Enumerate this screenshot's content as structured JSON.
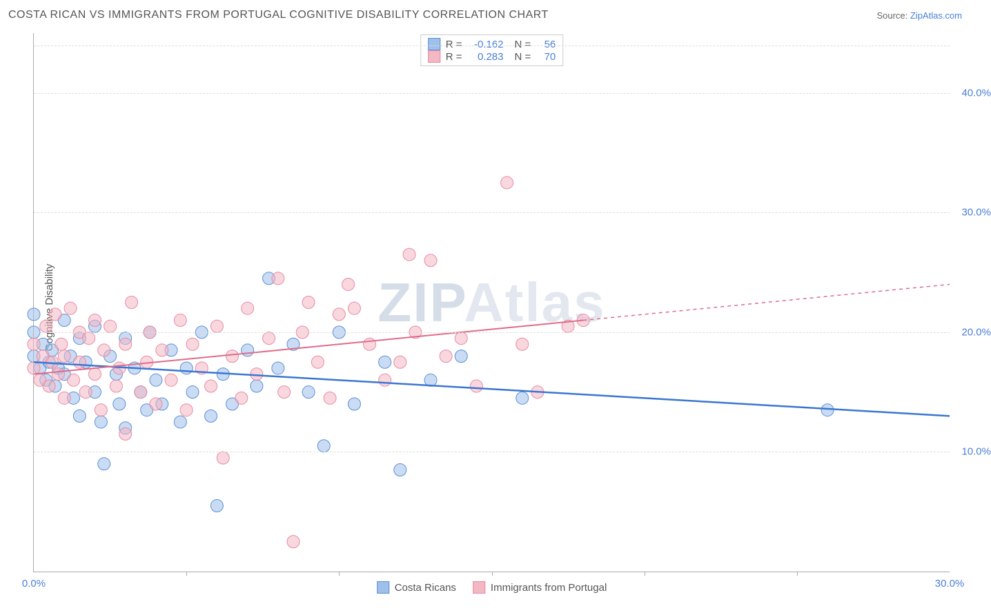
{
  "title": "COSTA RICAN VS IMMIGRANTS FROM PORTUGAL COGNITIVE DISABILITY CORRELATION CHART",
  "source_prefix": "Source: ",
  "source_link": "ZipAtlas.com",
  "y_axis_label": "Cognitive Disability",
  "watermark": {
    "part1": "ZIP",
    "part2": "Atlas"
  },
  "chart": {
    "type": "scatter",
    "xlim": [
      0,
      30
    ],
    "ylim": [
      0,
      45
    ],
    "x_ticks": [
      0,
      30
    ],
    "x_tick_labels": [
      "0.0%",
      "30.0%"
    ],
    "x_minor_ticks": [
      5,
      10,
      15,
      20,
      25
    ],
    "y_ticks": [
      10,
      20,
      30,
      40
    ],
    "y_tick_labels": [
      "10.0%",
      "20.0%",
      "30.0%",
      "40.0%"
    ],
    "grid_color": "#dddddd",
    "background_color": "#ffffff",
    "axis_color": "#aaaaaa",
    "tick_label_color": "#4a7fd6",
    "title_color": "#555555",
    "title_fontsize": 16,
    "label_fontsize": 15,
    "marker_radius": 9,
    "marker_opacity": 0.55,
    "series": [
      {
        "name": "Costa Ricans",
        "fill_color": "#9fc0ea",
        "stroke_color": "#5b8fd6",
        "line_color": "#3a76d0",
        "line_width": 2.5,
        "R": "-0.162",
        "N": "56",
        "trend": {
          "x1": 0,
          "y1": 17.5,
          "x2": 30,
          "y2": 13.0,
          "solid_until_x": 30
        },
        "points": [
          [
            0.0,
            18.0
          ],
          [
            0.0,
            20.0
          ],
          [
            0.0,
            21.5
          ],
          [
            0.2,
            17.0
          ],
          [
            0.3,
            19.0
          ],
          [
            0.4,
            16.0
          ],
          [
            0.5,
            17.5
          ],
          [
            0.6,
            18.5
          ],
          [
            0.7,
            15.5
          ],
          [
            0.8,
            17.0
          ],
          [
            1.0,
            21.0
          ],
          [
            1.0,
            16.5
          ],
          [
            1.2,
            18.0
          ],
          [
            1.3,
            14.5
          ],
          [
            1.5,
            19.5
          ],
          [
            1.5,
            13.0
          ],
          [
            1.7,
            17.5
          ],
          [
            2.0,
            15.0
          ],
          [
            2.0,
            20.5
          ],
          [
            2.2,
            12.5
          ],
          [
            2.3,
            9.0
          ],
          [
            2.5,
            18.0
          ],
          [
            2.7,
            16.5
          ],
          [
            2.8,
            14.0
          ],
          [
            3.0,
            19.5
          ],
          [
            3.0,
            12.0
          ],
          [
            3.3,
            17.0
          ],
          [
            3.5,
            15.0
          ],
          [
            3.7,
            13.5
          ],
          [
            3.8,
            20.0
          ],
          [
            4.0,
            16.0
          ],
          [
            4.2,
            14.0
          ],
          [
            4.5,
            18.5
          ],
          [
            4.8,
            12.5
          ],
          [
            5.0,
            17.0
          ],
          [
            5.2,
            15.0
          ],
          [
            5.5,
            20.0
          ],
          [
            5.8,
            13.0
          ],
          [
            6.0,
            5.5
          ],
          [
            6.2,
            16.5
          ],
          [
            6.5,
            14.0
          ],
          [
            7.0,
            18.5
          ],
          [
            7.3,
            15.5
          ],
          [
            7.7,
            24.5
          ],
          [
            8.0,
            17.0
          ],
          [
            8.5,
            19.0
          ],
          [
            9.0,
            15.0
          ],
          [
            9.5,
            10.5
          ],
          [
            10.0,
            20.0
          ],
          [
            10.5,
            14.0
          ],
          [
            11.5,
            17.5
          ],
          [
            12.0,
            8.5
          ],
          [
            13.0,
            16.0
          ],
          [
            14.0,
            18.0
          ],
          [
            16.0,
            14.5
          ],
          [
            26.0,
            13.5
          ]
        ]
      },
      {
        "name": "Immigrants from Portugal",
        "fill_color": "#f4b7c4",
        "stroke_color": "#e78aa0",
        "line_color": "#e06a88",
        "line_width": 2,
        "R": "0.283",
        "N": "70",
        "trend": {
          "x1": 0,
          "y1": 16.5,
          "x2": 30,
          "y2": 24.0,
          "solid_until_x": 18
        },
        "points": [
          [
            0.0,
            17.0
          ],
          [
            0.0,
            19.0
          ],
          [
            0.2,
            16.0
          ],
          [
            0.3,
            18.0
          ],
          [
            0.4,
            20.5
          ],
          [
            0.5,
            15.5
          ],
          [
            0.6,
            17.5
          ],
          [
            0.7,
            21.5
          ],
          [
            0.8,
            16.5
          ],
          [
            0.9,
            19.0
          ],
          [
            1.0,
            14.5
          ],
          [
            1.0,
            18.0
          ],
          [
            1.2,
            22.0
          ],
          [
            1.3,
            16.0
          ],
          [
            1.5,
            20.0
          ],
          [
            1.5,
            17.5
          ],
          [
            1.7,
            15.0
          ],
          [
            1.8,
            19.5
          ],
          [
            2.0,
            21.0
          ],
          [
            2.0,
            16.5
          ],
          [
            2.2,
            13.5
          ],
          [
            2.3,
            18.5
          ],
          [
            2.5,
            20.5
          ],
          [
            2.7,
            15.5
          ],
          [
            2.8,
            17.0
          ],
          [
            3.0,
            11.5
          ],
          [
            3.0,
            19.0
          ],
          [
            3.2,
            22.5
          ],
          [
            3.5,
            15.0
          ],
          [
            3.7,
            17.5
          ],
          [
            3.8,
            20.0
          ],
          [
            4.0,
            14.0
          ],
          [
            4.2,
            18.5
          ],
          [
            4.5,
            16.0
          ],
          [
            4.8,
            21.0
          ],
          [
            5.0,
            13.5
          ],
          [
            5.2,
            19.0
          ],
          [
            5.5,
            17.0
          ],
          [
            5.8,
            15.5
          ],
          [
            6.0,
            20.5
          ],
          [
            6.2,
            9.5
          ],
          [
            6.5,
            18.0
          ],
          [
            6.8,
            14.5
          ],
          [
            7.0,
            22.0
          ],
          [
            7.3,
            16.5
          ],
          [
            7.7,
            19.5
          ],
          [
            8.0,
            24.5
          ],
          [
            8.2,
            15.0
          ],
          [
            8.5,
            2.5
          ],
          [
            8.8,
            20.0
          ],
          [
            9.0,
            22.5
          ],
          [
            9.3,
            17.5
          ],
          [
            9.7,
            14.5
          ],
          [
            10.0,
            21.5
          ],
          [
            10.3,
            24.0
          ],
          [
            10.5,
            22.0
          ],
          [
            11.0,
            19.0
          ],
          [
            11.5,
            16.0
          ],
          [
            12.0,
            17.5
          ],
          [
            12.3,
            26.5
          ],
          [
            12.5,
            20.0
          ],
          [
            13.0,
            26.0
          ],
          [
            13.5,
            18.0
          ],
          [
            14.0,
            19.5
          ],
          [
            14.5,
            15.5
          ],
          [
            15.5,
            32.5
          ],
          [
            16.0,
            19.0
          ],
          [
            16.5,
            15.0
          ],
          [
            17.5,
            20.5
          ],
          [
            18.0,
            21.0
          ]
        ]
      }
    ]
  },
  "legend_top": {
    "R_label": "R =",
    "N_label": "N ="
  }
}
